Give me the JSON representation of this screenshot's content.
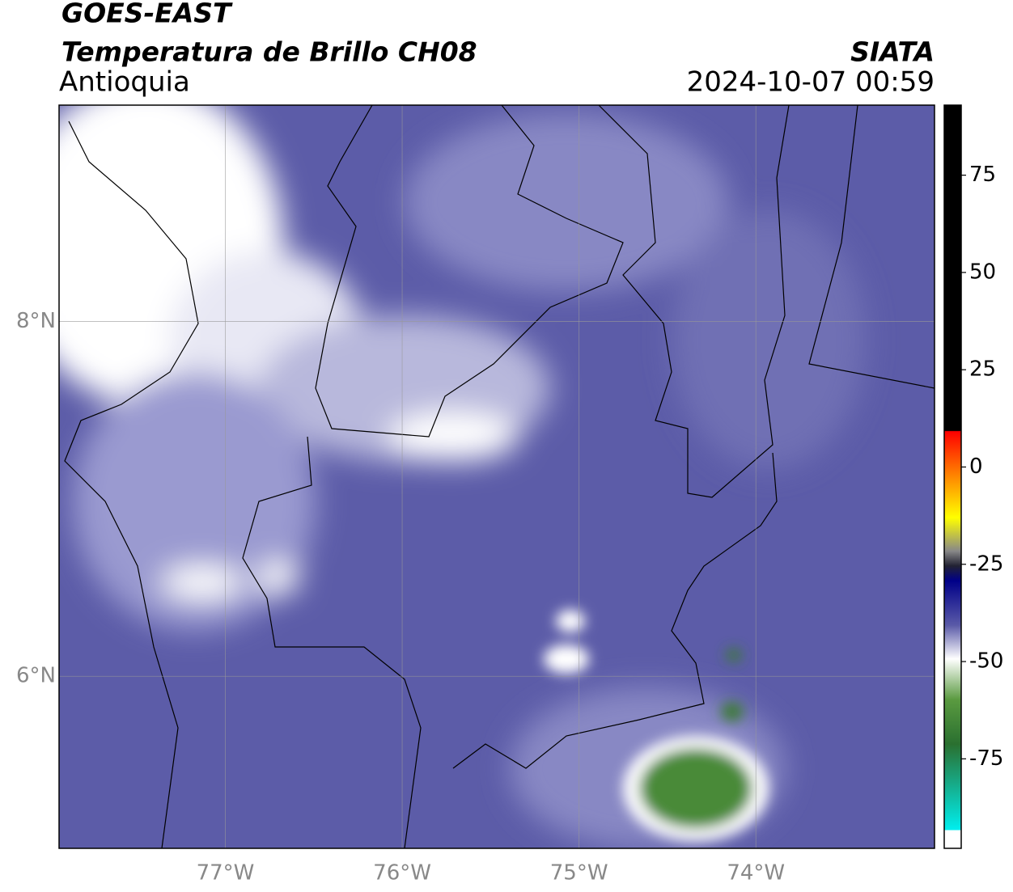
{
  "header": {
    "title": "GOES-EAST",
    "subtitle": "Temperatura de Brillo CH08",
    "region": "Antioquia",
    "source": "SIATA",
    "datetime": "2024-10-07 00:59"
  },
  "map": {
    "lon_range": [
      -77.94,
      -72.99
    ],
    "lat_range": [
      5.03,
      9.22
    ],
    "lon_ticks": [
      {
        "value": -77,
        "label": "77°W"
      },
      {
        "value": -76,
        "label": "76°W"
      },
      {
        "value": -75,
        "label": "75°W"
      },
      {
        "value": -74,
        "label": "74°W"
      }
    ],
    "lat_ticks": [
      {
        "value": 8,
        "label": "8°N"
      },
      {
        "value": 6,
        "label": "6°N"
      }
    ]
  },
  "colorbar": {
    "range": [
      -98,
      93
    ],
    "ticks": [
      75,
      50,
      25,
      0,
      -25,
      -50,
      -75
    ]
  }
}
